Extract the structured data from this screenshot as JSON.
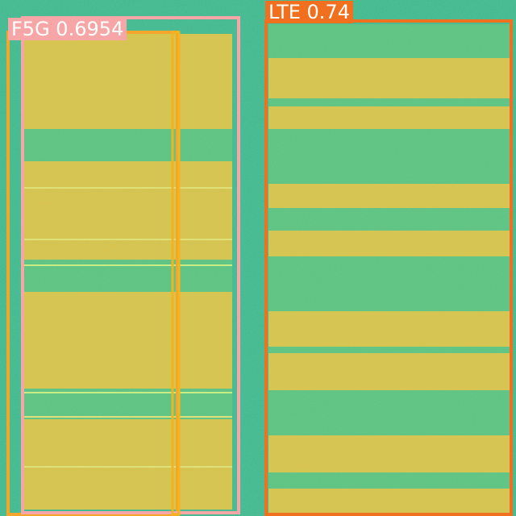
{
  "colors": {
    "background": "#3fb58a",
    "band_yellow": "#e9c03c",
    "band_green": "#5cc07a",
    "lte_box": "#f07020",
    "box_5g_outer": "#f4a62a",
    "box_5g_inner": "#f6a6a6",
    "box_5g_mid": "#f5b320",
    "label_text": "#ffffff"
  },
  "detections": [
    {
      "name": "lte",
      "label": "LTE 0.74",
      "color": "#f07020"
    },
    {
      "name": "5g-a",
      "label": "F5G 0.6954",
      "color": "#f4a62a"
    },
    {
      "name": "5g-b",
      "label": "",
      "color": "#f6a6a6"
    },
    {
      "name": "5g-c",
      "label": "",
      "color": "#f5b320"
    }
  ]
}
